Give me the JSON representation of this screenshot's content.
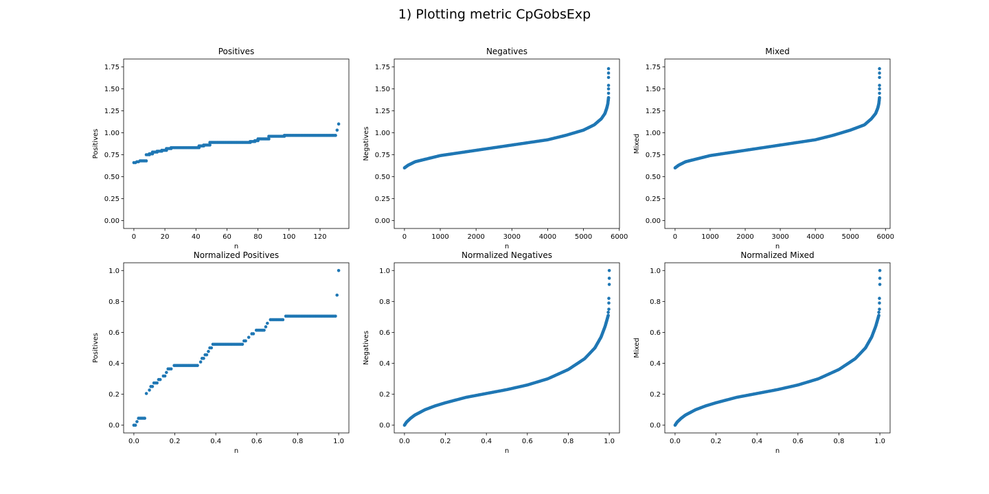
{
  "figure": {
    "suptitle": "1) Plotting metric CpGobsExp",
    "point_color": "#1f77b4"
  },
  "chart_data": [
    {
      "type": "scatter",
      "title": "Positives",
      "xlabel": "n",
      "ylabel": "Positives",
      "xlim": [
        -6.6,
        138.6
      ],
      "ylim": [
        -0.09,
        1.84
      ],
      "xticks": [
        0,
        20,
        40,
        60,
        80,
        100,
        120
      ],
      "yticks": [
        0.0,
        0.25,
        0.5,
        0.75,
        1.0,
        1.25,
        1.5,
        1.75
      ],
      "ytick_labels": [
        "0.00",
        "0.25",
        "0.50",
        "0.75",
        "1.00",
        "1.25",
        "1.50",
        "1.75"
      ],
      "grid": false,
      "series": [
        {
          "steps": [
            [
              0,
              1,
              0.66
            ],
            [
              2,
              3,
              0.67
            ],
            [
              4,
              8,
              0.68
            ],
            [
              8,
              10,
              0.75
            ],
            [
              10,
              12,
              0.76
            ],
            [
              12,
              15,
              0.78
            ],
            [
              15,
              18,
              0.79
            ],
            [
              18,
              21,
              0.8
            ],
            [
              21,
              24,
              0.82
            ],
            [
              24,
              42,
              0.83
            ],
            [
              42,
              45,
              0.85
            ],
            [
              45,
              49,
              0.86
            ],
            [
              49,
              75,
              0.89
            ],
            [
              75,
              78,
              0.9
            ],
            [
              78,
              80,
              0.91
            ],
            [
              80,
              87,
              0.93
            ],
            [
              87,
              97,
              0.96
            ],
            [
              97,
              130,
              0.97
            ],
            [
              131,
              131,
              1.03
            ],
            [
              132,
              132,
              1.1
            ]
          ]
        }
      ]
    },
    {
      "type": "scatter",
      "title": "Negatives",
      "xlabel": "n",
      "ylabel": "Negatives",
      "xlim": [
        -286,
        6006
      ],
      "ylim": [
        -0.09,
        1.84
      ],
      "xticks": [
        0,
        1000,
        2000,
        3000,
        4000,
        5000,
        6000
      ],
      "yticks": [
        0.0,
        0.25,
        0.5,
        0.75,
        1.0,
        1.25,
        1.5,
        1.75
      ],
      "ytick_labels": [
        "0.00",
        "0.25",
        "0.50",
        "0.75",
        "1.00",
        "1.25",
        "1.50",
        "1.75"
      ],
      "grid": false,
      "series": [
        {
          "curve": [
            [
              0,
              0.6
            ],
            [
              100,
              0.63
            ],
            [
              300,
              0.67
            ],
            [
              500,
              0.69
            ],
            [
              800,
              0.72
            ],
            [
              1000,
              0.74
            ],
            [
              1500,
              0.77
            ],
            [
              2000,
              0.8
            ],
            [
              2500,
              0.83
            ],
            [
              3000,
              0.86
            ],
            [
              3500,
              0.89
            ],
            [
              4000,
              0.92
            ],
            [
              4500,
              0.97
            ],
            [
              5000,
              1.03
            ],
            [
              5300,
              1.09
            ],
            [
              5500,
              1.16
            ],
            [
              5600,
              1.22
            ],
            [
              5650,
              1.28
            ],
            [
              5680,
              1.33
            ],
            [
              5700,
              1.4
            ]
          ],
          "outliers": [
            [
              5700,
              1.45
            ],
            [
              5700,
              1.5
            ],
            [
              5700,
              1.54
            ],
            [
              5700,
              1.63
            ],
            [
              5700,
              1.68
            ],
            [
              5700,
              1.73
            ]
          ]
        }
      ]
    },
    {
      "type": "scatter",
      "title": "Mixed",
      "xlabel": "n",
      "ylabel": "Mixed",
      "xlim": [
        -292,
        6132
      ],
      "ylim": [
        -0.09,
        1.84
      ],
      "xticks": [
        0,
        1000,
        2000,
        3000,
        4000,
        5000,
        6000
      ],
      "yticks": [
        0.0,
        0.25,
        0.5,
        0.75,
        1.0,
        1.25,
        1.5,
        1.75
      ],
      "ytick_labels": [
        "0.00",
        "0.25",
        "0.50",
        "0.75",
        "1.00",
        "1.25",
        "1.50",
        "1.75"
      ],
      "grid": false,
      "series": [
        {
          "curve": [
            [
              0,
              0.6
            ],
            [
              100,
              0.63
            ],
            [
              300,
              0.67
            ],
            [
              500,
              0.69
            ],
            [
              800,
              0.72
            ],
            [
              1000,
              0.74
            ],
            [
              1500,
              0.77
            ],
            [
              2000,
              0.8
            ],
            [
              2500,
              0.83
            ],
            [
              3000,
              0.86
            ],
            [
              3500,
              0.89
            ],
            [
              4000,
              0.92
            ],
            [
              4500,
              0.97
            ],
            [
              5000,
              1.03
            ],
            [
              5400,
              1.09
            ],
            [
              5600,
              1.16
            ],
            [
              5720,
              1.22
            ],
            [
              5780,
              1.28
            ],
            [
              5810,
              1.33
            ],
            [
              5830,
              1.4
            ]
          ],
          "outliers": [
            [
              5830,
              1.45
            ],
            [
              5830,
              1.5
            ],
            [
              5830,
              1.54
            ],
            [
              5830,
              1.63
            ],
            [
              5830,
              1.68
            ],
            [
              5830,
              1.73
            ]
          ]
        }
      ]
    },
    {
      "type": "scatter",
      "title": "Normalized Positives",
      "xlabel": "n",
      "ylabel": "Positives",
      "xlim": [
        -0.05,
        1.05
      ],
      "ylim": [
        -0.05,
        1.05
      ],
      "xticks": [
        0.0,
        0.2,
        0.4,
        0.6,
        0.8,
        1.0
      ],
      "yticks": [
        0.0,
        0.2,
        0.4,
        0.6,
        0.8,
        1.0
      ],
      "xtick_labels": [
        "0.0",
        "0.2",
        "0.4",
        "0.6",
        "0.8",
        "1.0"
      ],
      "ytick_labels": [
        "0.0",
        "0.2",
        "0.4",
        "0.6",
        "0.8",
        "1.0"
      ],
      "grid": false,
      "series": [
        {
          "steps": [
            [
              0.0,
              0.0076,
              0.0
            ],
            [
              0.0152,
              0.0152,
              0.023
            ],
            [
              0.0227,
              0.053,
              0.045
            ],
            [
              0.061,
              0.068,
              0.205
            ],
            [
              0.076,
              0.076,
              0.227
            ],
            [
              0.083,
              0.091,
              0.25
            ],
            [
              0.098,
              0.114,
              0.273
            ],
            [
              0.121,
              0.136,
              0.295
            ],
            [
              0.144,
              0.152,
              0.318
            ],
            [
              0.159,
              0.159,
              0.341
            ],
            [
              0.167,
              0.189,
              0.364
            ],
            [
              0.197,
              0.318,
              0.386
            ],
            [
              0.326,
              0.326,
              0.409
            ],
            [
              0.333,
              0.341,
              0.432
            ],
            [
              0.348,
              0.356,
              0.455
            ],
            [
              0.364,
              0.364,
              0.477
            ],
            [
              0.371,
              0.379,
              0.5
            ],
            [
              0.386,
              0.53,
              0.523
            ],
            [
              0.538,
              0.553,
              0.545
            ],
            [
              0.561,
              0.568,
              0.568
            ],
            [
              0.576,
              0.591,
              0.591
            ],
            [
              0.598,
              0.636,
              0.614
            ],
            [
              0.644,
              0.644,
              0.636
            ],
            [
              0.652,
              0.659,
              0.659
            ],
            [
              0.667,
              0.735,
              0.682
            ],
            [
              0.742,
              0.985,
              0.705
            ],
            [
              0.992,
              0.992,
              0.841
            ],
            [
              1.0,
              1.0,
              1.0
            ]
          ]
        }
      ]
    },
    {
      "type": "scatter",
      "title": "Normalized Negatives",
      "xlabel": "n",
      "ylabel": "Negatives",
      "xlim": [
        -0.05,
        1.05
      ],
      "ylim": [
        -0.05,
        1.05
      ],
      "xticks": [
        0.0,
        0.2,
        0.4,
        0.6,
        0.8,
        1.0
      ],
      "yticks": [
        0.0,
        0.2,
        0.4,
        0.6,
        0.8,
        1.0
      ],
      "xtick_labels": [
        "0.0",
        "0.2",
        "0.4",
        "0.6",
        "0.8",
        "1.0"
      ],
      "ytick_labels": [
        "0.0",
        "0.2",
        "0.4",
        "0.6",
        "0.8",
        "1.0"
      ],
      "grid": false,
      "series": [
        {
          "curve": [
            [
              0.0,
              0.0
            ],
            [
              0.01,
              0.02
            ],
            [
              0.03,
              0.045
            ],
            [
              0.05,
              0.065
            ],
            [
              0.1,
              0.1
            ],
            [
              0.15,
              0.125
            ],
            [
              0.2,
              0.145
            ],
            [
              0.3,
              0.18
            ],
            [
              0.4,
              0.205
            ],
            [
              0.5,
              0.23
            ],
            [
              0.6,
              0.26
            ],
            [
              0.7,
              0.3
            ],
            [
              0.8,
              0.36
            ],
            [
              0.88,
              0.43
            ],
            [
              0.93,
              0.5
            ],
            [
              0.96,
              0.57
            ],
            [
              0.98,
              0.64
            ],
            [
              0.995,
              0.71
            ]
          ],
          "outliers": [
            [
              0.995,
              0.73
            ],
            [
              0.998,
              0.75
            ],
            [
              0.998,
              0.79
            ],
            [
              0.998,
              0.82
            ],
            [
              1.0,
              0.91
            ],
            [
              1.0,
              0.95
            ],
            [
              1.0,
              1.0
            ]
          ]
        }
      ]
    },
    {
      "type": "scatter",
      "title": "Normalized Mixed",
      "xlabel": "n",
      "ylabel": "Mixed",
      "xlim": [
        -0.05,
        1.05
      ],
      "ylim": [
        -0.05,
        1.05
      ],
      "xticks": [
        0.0,
        0.2,
        0.4,
        0.6,
        0.8,
        1.0
      ],
      "yticks": [
        0.0,
        0.2,
        0.4,
        0.6,
        0.8,
        1.0
      ],
      "xtick_labels": [
        "0.0",
        "0.2",
        "0.4",
        "0.6",
        "0.8",
        "1.0"
      ],
      "ytick_labels": [
        "0.0",
        "0.2",
        "0.4",
        "0.6",
        "0.8",
        "1.0"
      ],
      "grid": false,
      "series": [
        {
          "curve": [
            [
              0.0,
              0.0
            ],
            [
              0.01,
              0.02
            ],
            [
              0.03,
              0.045
            ],
            [
              0.05,
              0.065
            ],
            [
              0.1,
              0.1
            ],
            [
              0.15,
              0.125
            ],
            [
              0.2,
              0.145
            ],
            [
              0.3,
              0.18
            ],
            [
              0.4,
              0.205
            ],
            [
              0.5,
              0.23
            ],
            [
              0.6,
              0.26
            ],
            [
              0.7,
              0.3
            ],
            [
              0.8,
              0.36
            ],
            [
              0.88,
              0.43
            ],
            [
              0.93,
              0.5
            ],
            [
              0.96,
              0.57
            ],
            [
              0.98,
              0.64
            ],
            [
              0.995,
              0.71
            ]
          ],
          "outliers": [
            [
              0.995,
              0.73
            ],
            [
              0.998,
              0.75
            ],
            [
              0.998,
              0.79
            ],
            [
              0.998,
              0.82
            ],
            [
              1.0,
              0.91
            ],
            [
              1.0,
              0.95
            ],
            [
              1.0,
              1.0
            ]
          ]
        }
      ]
    }
  ]
}
